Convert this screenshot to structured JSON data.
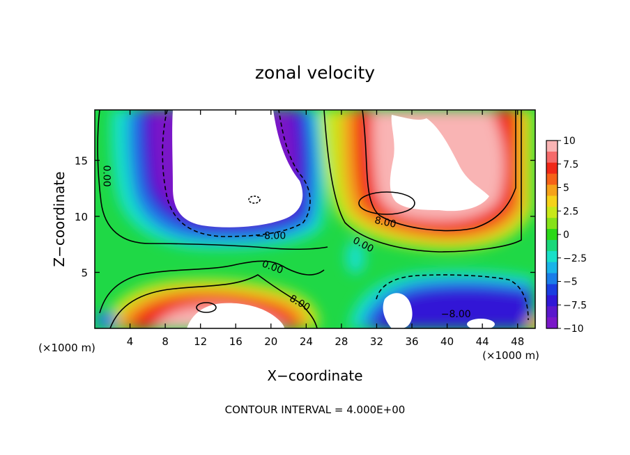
{
  "chart_data": {
    "type": "contour",
    "title": "zonal velocity",
    "xlabel": "X−coordinate",
    "ylabel": "Z−coordinate",
    "x_unit_left": "(×1000 m)",
    "x_unit_right": "(×1000 m)",
    "xlim": [
      0,
      50
    ],
    "ylim": [
      0,
      19.5
    ],
    "x_ticks": [
      4,
      8,
      12,
      16,
      20,
      24,
      28,
      32,
      36,
      40,
      44,
      48
    ],
    "y_ticks": [
      5,
      10,
      15
    ],
    "x_tick_labels": [
      "4",
      "8",
      "12",
      "16",
      "20",
      "24",
      "28",
      "32",
      "36",
      "40",
      "44",
      "48"
    ],
    "y_tick_labels": [
      "5",
      "10",
      "15"
    ],
    "colorbar": {
      "range": [
        -10,
        10
      ],
      "labels": [
        "10",
        "7.5",
        "5",
        "2.5",
        "0",
        "−2.5",
        "−5",
        "−7.5",
        "−10"
      ],
      "values": [
        10,
        7.5,
        5,
        2.5,
        0,
        -2.5,
        -5,
        -7.5,
        -10
      ]
    },
    "contour_labels": [
      {
        "text": "0.00",
        "x": 1.4,
        "z": 13.6,
        "angle": 90
      },
      {
        "text": "−8.00",
        "x": 20.0,
        "z": 8.3,
        "angle": 0
      },
      {
        "text": "8.00",
        "x": 33.0,
        "z": 9.5,
        "angle": 12
      },
      {
        "text": "0.00",
        "x": 30.5,
        "z": 7.5,
        "angle": 28
      },
      {
        "text": "0.00",
        "x": 20.2,
        "z": 5.5,
        "angle": 20
      },
      {
        "text": "8.00",
        "x": 23.3,
        "z": 2.3,
        "angle": 30
      },
      {
        "text": "−8.00",
        "x": 41.0,
        "z": 1.3,
        "angle": 0
      }
    ],
    "contour_interval_text": "CONTOUR INTERVAL = 4.000E+00",
    "grid": false,
    "legend": "colorbar right"
  }
}
